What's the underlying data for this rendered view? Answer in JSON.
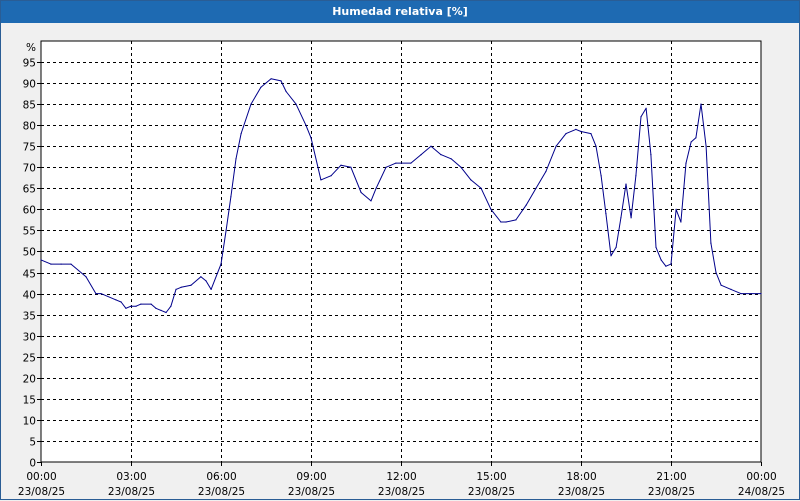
{
  "window": {
    "title": "Humedad relativa [%]"
  },
  "colors": {
    "title_bar": "#1e6ab2",
    "line": "#00008b",
    "grid": "#000000",
    "background": "#ffffff"
  },
  "chart_data": {
    "type": "line",
    "title": "Humedad relativa [%]",
    "ylabel": "%",
    "xlabel": "",
    "ylim": [
      0,
      95
    ],
    "yticks": [
      0,
      5,
      10,
      15,
      20,
      25,
      30,
      35,
      40,
      45,
      50,
      55,
      60,
      65,
      70,
      75,
      80,
      85,
      90,
      95
    ],
    "x_unit": "hours",
    "xlim": [
      0,
      24
    ],
    "xticks": [
      {
        "x": 0,
        "time": "00:00",
        "date": "23/08/25"
      },
      {
        "x": 3,
        "time": "03:00",
        "date": "23/08/25"
      },
      {
        "x": 6,
        "time": "06:00",
        "date": "23/08/25"
      },
      {
        "x": 9,
        "time": "09:00",
        "date": "23/08/25"
      },
      {
        "x": 12,
        "time": "12:00",
        "date": "23/08/25"
      },
      {
        "x": 15,
        "time": "15:00",
        "date": "23/08/25"
      },
      {
        "x": 18,
        "time": "18:00",
        "date": "23/08/25"
      },
      {
        "x": 21,
        "time": "21:00",
        "date": "23/08/25"
      },
      {
        "x": 24,
        "time": "00:00",
        "date": "24/08/25"
      }
    ],
    "grid": true,
    "legend": "none",
    "series": [
      {
        "x": [
          0,
          0.33,
          0.67,
          1.0,
          1.5,
          1.83,
          2.0,
          2.5,
          2.67,
          2.83,
          3.0,
          3.17,
          3.33,
          3.67,
          3.83,
          4.0,
          4.17,
          4.33,
          4.5,
          4.67,
          5.0,
          5.33,
          5.5,
          5.67,
          6.0,
          6.17,
          6.33,
          6.5,
          6.67,
          7.0,
          7.33,
          7.67,
          8.0,
          8.17,
          8.5,
          8.83,
          9.0,
          9.33,
          9.67,
          10.0,
          10.33,
          10.67,
          11.0,
          11.17,
          11.5,
          11.83,
          12.33,
          12.67,
          13.0,
          13.33,
          13.67,
          14.0,
          14.33,
          14.67,
          15.0,
          15.33,
          15.5,
          15.83,
          16.17,
          16.5,
          16.83,
          17.17,
          17.5,
          17.83,
          18.0,
          18.33,
          18.5,
          18.67,
          18.83,
          19.0,
          19.17,
          19.33,
          19.5,
          19.67,
          19.83,
          20.0,
          20.17,
          20.33,
          20.5,
          20.67,
          20.83,
          21.0,
          21.17,
          21.33,
          21.5,
          21.67,
          21.83,
          22.0,
          22.17,
          22.33,
          22.5,
          22.67,
          23.0,
          23.33,
          23.67,
          24.0
        ],
        "values": [
          48,
          47,
          47,
          47,
          44,
          40,
          40,
          38.5,
          38,
          36.5,
          37,
          37,
          37.5,
          37.5,
          36.5,
          36,
          35.5,
          37,
          41,
          41.5,
          42,
          44,
          43,
          41,
          47,
          55,
          63,
          72,
          78,
          85,
          89,
          91,
          90.5,
          88,
          85,
          80,
          77,
          67,
          68,
          70.5,
          70,
          64,
          62,
          65,
          70,
          71,
          71,
          73,
          75,
          73,
          72,
          70,
          67,
          65,
          60,
          57,
          57,
          57.5,
          61,
          65,
          69,
          75,
          78,
          79,
          78.5,
          78,
          75,
          68,
          59,
          49,
          51,
          58,
          66,
          58,
          68,
          82,
          84,
          73,
          51,
          48,
          46.5,
          47,
          60,
          57,
          71,
          76,
          77,
          85,
          75,
          52,
          45,
          42,
          41,
          40,
          40,
          40
        ]
      }
    ]
  }
}
